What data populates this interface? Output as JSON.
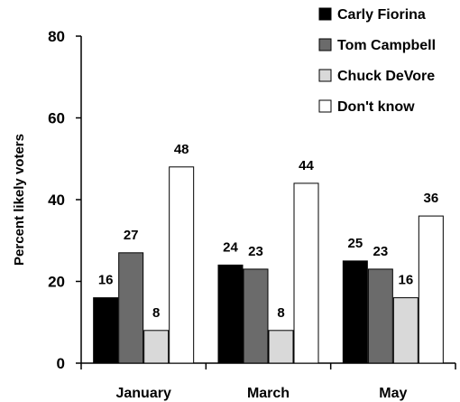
{
  "chart_data": {
    "type": "bar",
    "categories": [
      "January",
      "March",
      "May"
    ],
    "series": [
      {
        "name": "Carly Fiorina",
        "color": "#000000",
        "values": [
          16,
          24,
          25
        ]
      },
      {
        "name": "Tom Campbell",
        "color": "#6b6b6b",
        "values": [
          27,
          23,
          23
        ]
      },
      {
        "name": "Chuck DeVore",
        "color": "#d9d9d9",
        "values": [
          8,
          8,
          16
        ]
      },
      {
        "name": "Don't know",
        "color": "#ffffff",
        "values": [
          48,
          44,
          36
        ]
      }
    ],
    "ylabel": "Percent likely voters",
    "xlabel": "",
    "ylim": [
      0,
      80
    ],
    "yticks": [
      0,
      20,
      40,
      60,
      80
    ],
    "grid": false,
    "legend_position": "top-right"
  }
}
